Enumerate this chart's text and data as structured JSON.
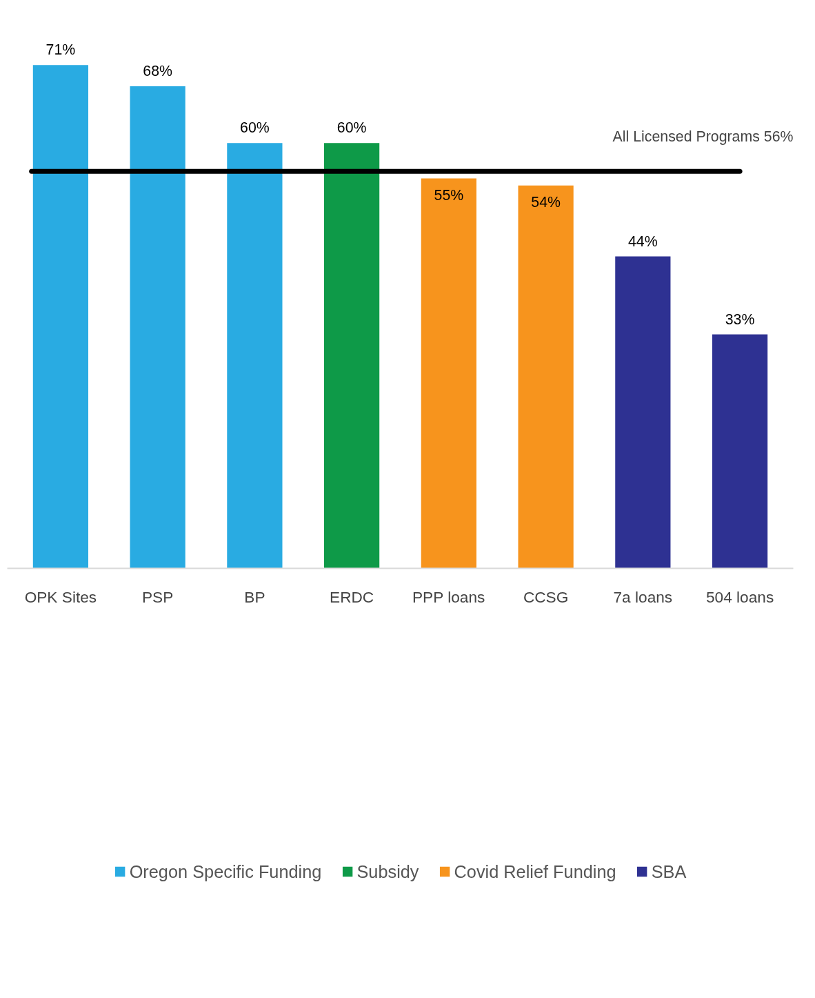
{
  "chart_data": {
    "type": "bar",
    "categories": [
      "OPK Sites",
      "PSP",
      "BP",
      "ERDC",
      "PPP loans",
      "CCSG",
      "7a loans",
      "504 loans"
    ],
    "series": [
      {
        "name": "Oregon Specific Funding",
        "color": "#29abe2",
        "values": [
          71,
          68,
          60,
          null,
          null,
          null,
          null,
          null
        ],
        "value_labels": [
          "71%",
          "68%",
          "60%",
          null,
          null,
          null,
          null,
          null
        ]
      },
      {
        "name": "Subsidy",
        "color": "#0e9a48",
        "values": [
          null,
          null,
          null,
          60,
          null,
          null,
          null,
          null
        ],
        "value_labels": [
          null,
          null,
          null,
          "60%",
          null,
          null,
          null,
          null
        ]
      },
      {
        "name": "Covid Relief Funding",
        "color": "#f7941d",
        "values": [
          null,
          null,
          null,
          null,
          55,
          54,
          null,
          null
        ],
        "value_labels": [
          null,
          null,
          null,
          null,
          "55%",
          "54%",
          null,
          null
        ]
      },
      {
        "name": "SBA",
        "color": "#2e3192",
        "values": [
          null,
          null,
          null,
          null,
          null,
          null,
          44,
          33
        ],
        "value_labels": [
          null,
          null,
          null,
          null,
          null,
          null,
          "44%",
          "33%"
        ]
      }
    ],
    "ref_lines": [
      {
        "axis": "y",
        "value": 56,
        "label": "All Licensed Programs 56%",
        "color": "#000000"
      }
    ],
    "legend": "bottom",
    "grid": false
  }
}
